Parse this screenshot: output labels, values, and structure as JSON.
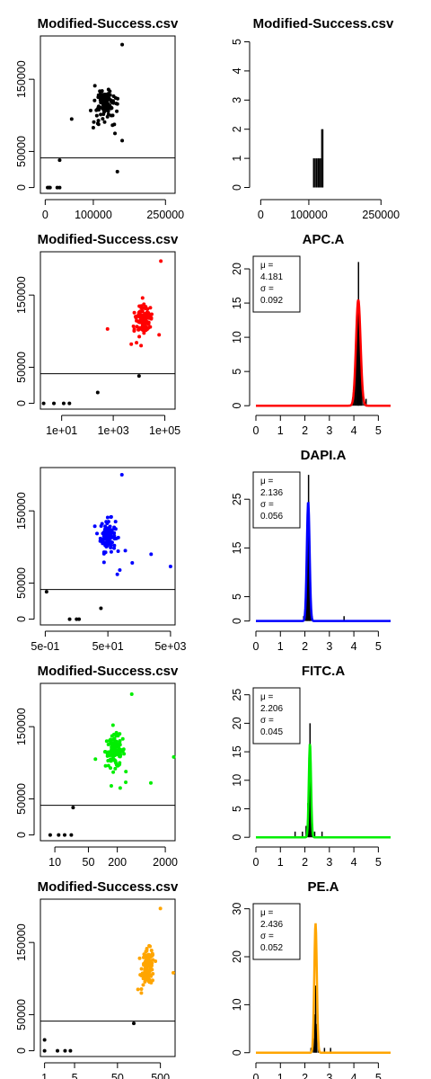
{
  "chart_data": [
    {
      "type": "scatter",
      "title": "Modified-Success.csv",
      "xscale": "linear",
      "xlim": [
        -10000,
        270000
      ],
      "ylim": [
        -8000,
        210000
      ],
      "xticks": [
        {
          "v": 0,
          "label": "0"
        },
        {
          "v": 100000,
          "label": "100000"
        },
        {
          "v": 250000,
          "label": "250000"
        }
      ],
      "yticks": [
        {
          "v": 0,
          "label": "0"
        },
        {
          "v": 50000,
          "label": "50000"
        },
        {
          "v": 150000,
          "label": "150000"
        }
      ],
      "hline": 41000,
      "color": "#000000",
      "cluster": {
        "cx": 125000,
        "cy": 116000,
        "sx": 12000,
        "sy": 11000,
        "n": 110
      },
      "outliers": [
        [
          5000,
          0
        ],
        [
          8000,
          0
        ],
        [
          10000,
          0
        ],
        [
          25000,
          0
        ],
        [
          30000,
          0
        ],
        [
          30000,
          38000
        ],
        [
          55000,
          95000
        ],
        [
          160000,
          198000
        ],
        [
          150000,
          22000
        ],
        [
          160000,
          65000
        ],
        [
          145000,
          75000
        ],
        [
          100000,
          83000
        ]
      ]
    },
    {
      "type": "bar",
      "title": "Modified-Success.csv",
      "xscale": "linear",
      "xlim": [
        -10000,
        270000
      ],
      "ylim": [
        -0.2,
        5.2
      ],
      "xticks": [
        {
          "v": 0,
          "label": "0"
        },
        {
          "v": 100000,
          "label": "100000"
        },
        {
          "v": 250000,
          "label": "250000"
        }
      ],
      "yticks": [
        {
          "v": 0,
          "label": "0"
        },
        {
          "v": 1,
          "label": "1"
        },
        {
          "v": 2,
          "label": "2"
        },
        {
          "v": 3,
          "label": "3"
        },
        {
          "v": 4,
          "label": "4"
        },
        {
          "v": 5,
          "label": "5"
        }
      ],
      "spikes": [
        [
          110000,
          1
        ],
        [
          113000,
          1
        ],
        [
          116000,
          1
        ],
        [
          119000,
          1
        ],
        [
          121000,
          1
        ],
        [
          124000,
          1
        ],
        [
          127000,
          2
        ],
        [
          129000,
          2
        ]
      ]
    },
    {
      "type": "scatter",
      "title": "Modified-Success.csv",
      "xscale": "log",
      "xlim": [
        1.5,
        250000
      ],
      "ylim": [
        -8000,
        210000
      ],
      "xticks": [
        {
          "v": 10,
          "label": "1e+01"
        },
        {
          "v": 1000,
          "label": "1e+03"
        },
        {
          "v": 100000,
          "label": "1e+05"
        }
      ],
      "yticks": [
        {
          "v": 0,
          "label": "0"
        },
        {
          "v": 50000,
          "label": "50000"
        },
        {
          "v": 150000,
          "label": "150000"
        }
      ],
      "hline": 41000,
      "color": "#ff0000",
      "cluster": {
        "cx": 15000,
        "cy": 116000,
        "sx": 0.18,
        "sy": 11000,
        "n": 110
      },
      "outliers": [
        [
          2,
          0
        ],
        [
          5,
          0
        ],
        [
          12,
          0
        ],
        [
          20,
          0
        ],
        [
          250,
          15000
        ],
        [
          10000,
          38000
        ],
        [
          5000,
          82000
        ],
        [
          12000,
          80000
        ],
        [
          8000,
          84000
        ],
        [
          600,
          103000
        ],
        [
          70000,
          197000
        ],
        [
          60000,
          95000
        ]
      ]
    },
    {
      "type": "histogram",
      "title": "APC.A",
      "xlim": [
        0,
        5.5
      ],
      "ylim": [
        -0.5,
        22.5
      ],
      "xticks": [
        {
          "v": 0,
          "label": "0"
        },
        {
          "v": 1,
          "label": "1"
        },
        {
          "v": 2,
          "label": "2"
        },
        {
          "v": 3,
          "label": "3"
        },
        {
          "v": 4,
          "label": "4"
        },
        {
          "v": 5,
          "label": "5"
        }
      ],
      "yticks": [
        {
          "v": 0,
          "label": "0"
        },
        {
          "v": 5,
          "label": "5"
        },
        {
          "v": 10,
          "label": "10"
        },
        {
          "v": 15,
          "label": "15"
        },
        {
          "v": 20,
          "label": "20"
        }
      ],
      "color": "#ff0000",
      "mu": 4.181,
      "sigma": 0.092,
      "curve_peak": 15.5,
      "legend": {
        "l1": "μ =",
        "l2": "4.181",
        "l3": "σ =",
        "l4": "0.092"
      },
      "spikes": [
        [
          3.95,
          1
        ],
        [
          4.0,
          2
        ],
        [
          4.05,
          5
        ],
        [
          4.1,
          9
        ],
        [
          4.15,
          14
        ],
        [
          4.19,
          21
        ],
        [
          4.23,
          12
        ],
        [
          4.28,
          7
        ],
        [
          4.33,
          3
        ],
        [
          4.4,
          1
        ],
        [
          4.5,
          1
        ]
      ]
    },
    {
      "type": "scatter",
      "title": "",
      "xscale": "log",
      "xlim": [
        0.35,
        7000
      ],
      "ylim": [
        -8000,
        210000
      ],
      "xticks": [
        {
          "v": 0.5,
          "label": "5e-01"
        },
        {
          "v": 50,
          "label": "5e+01"
        },
        {
          "v": 5000,
          "label": "5e+03"
        }
      ],
      "yticks": [
        {
          "v": 0,
          "label": "0"
        },
        {
          "v": 50000,
          "label": "50000"
        },
        {
          "v": 150000,
          "label": "150000"
        }
      ],
      "hline": 41000,
      "color": "#0000ff",
      "cluster": {
        "cx": 50,
        "cy": 116000,
        "sx": 0.12,
        "sy": 11000,
        "n": 110
      },
      "outliers": [
        [
          0.55,
          38000
        ],
        [
          3,
          0
        ],
        [
          5,
          0
        ],
        [
          6,
          0
        ],
        [
          30,
          15000
        ],
        [
          140,
          200000
        ],
        [
          180,
          95000
        ],
        [
          300,
          78000
        ],
        [
          5000,
          73000
        ],
        [
          120,
          68000
        ],
        [
          100,
          62000
        ],
        [
          1200,
          90000
        ]
      ]
    },
    {
      "type": "histogram",
      "title": "DAPI.A",
      "xlim": [
        0,
        5.5
      ],
      "ylim": [
        -0.8,
        31.5
      ],
      "xticks": [
        {
          "v": 0,
          "label": "0"
        },
        {
          "v": 1,
          "label": "1"
        },
        {
          "v": 2,
          "label": "2"
        },
        {
          "v": 3,
          "label": "3"
        },
        {
          "v": 4,
          "label": "4"
        },
        {
          "v": 5,
          "label": "5"
        }
      ],
      "yticks": [
        {
          "v": 0,
          "label": "0"
        },
        {
          "v": 5,
          "label": "5"
        },
        {
          "v": 15,
          "label": "15"
        },
        {
          "v": 25,
          "label": "25"
        }
      ],
      "color": "#0000ff",
      "mu": 2.136,
      "sigma": 0.056,
      "curve_peak": 24.5,
      "legend": {
        "l1": "μ =",
        "l2": "2.136",
        "l3": "σ =",
        "l4": "0.056"
      },
      "spikes": [
        [
          1.95,
          1
        ],
        [
          2.02,
          3
        ],
        [
          2.07,
          9
        ],
        [
          2.11,
          18
        ],
        [
          2.15,
          30
        ],
        [
          2.19,
          14
        ],
        [
          2.24,
          5
        ],
        [
          2.3,
          1
        ],
        [
          3.6,
          1
        ]
      ]
    },
    {
      "type": "scatter",
      "title": "Modified-Success.csv",
      "xscale": "log",
      "xlim": [
        5,
        3200
      ],
      "ylim": [
        -8000,
        210000
      ],
      "xticks": [
        {
          "v": 10,
          "label": "10"
        },
        {
          "v": 50,
          "label": "50"
        },
        {
          "v": 200,
          "label": "200"
        },
        {
          "v": 2000,
          "label": "2000"
        }
      ],
      "yticks": [
        {
          "v": 0,
          "label": "0"
        },
        {
          "v": 50000,
          "label": "50000"
        },
        {
          "v": 150000,
          "label": "150000"
        }
      ],
      "hline": 41000,
      "color": "#00ee00",
      "cluster": {
        "cx": 180,
        "cy": 116000,
        "sx": 0.1,
        "sy": 11000,
        "n": 110
      },
      "outliers": [
        [
          8,
          0
        ],
        [
          12,
          0
        ],
        [
          16,
          0
        ],
        [
          22,
          0
        ],
        [
          24,
          38000
        ],
        [
          70,
          105000
        ],
        [
          400,
          195000
        ],
        [
          3000,
          108000
        ],
        [
          1000,
          72000
        ],
        [
          230,
          65000
        ],
        [
          300,
          73000
        ],
        [
          150,
          68000
        ]
      ]
    },
    {
      "type": "histogram",
      "title": "FITC.A",
      "xlim": [
        0,
        5.5
      ],
      "ylim": [
        -0.6,
        27
      ],
      "xticks": [
        {
          "v": 0,
          "label": "0"
        },
        {
          "v": 1,
          "label": "1"
        },
        {
          "v": 2,
          "label": "2"
        },
        {
          "v": 3,
          "label": "3"
        },
        {
          "v": 4,
          "label": "4"
        },
        {
          "v": 5,
          "label": "5"
        }
      ],
      "yticks": [
        {
          "v": 0,
          "label": "0"
        },
        {
          "v": 5,
          "label": "5"
        },
        {
          "v": 10,
          "label": "10"
        },
        {
          "v": 15,
          "label": "15"
        },
        {
          "v": 20,
          "label": "20"
        },
        {
          "v": 25,
          "label": "25"
        }
      ],
      "color": "#00ee00",
      "mu": 2.206,
      "sigma": 0.045,
      "curve_peak": 16.5,
      "legend": {
        "l1": "μ =",
        "l2": "2.206",
        "l3": "σ =",
        "l4": "0.045"
      },
      "spikes": [
        [
          1.6,
          1
        ],
        [
          1.9,
          1
        ],
        [
          2.05,
          2
        ],
        [
          2.12,
          6
        ],
        [
          2.17,
          14
        ],
        [
          2.21,
          20
        ],
        [
          2.26,
          11
        ],
        [
          2.3,
          4
        ],
        [
          2.4,
          1
        ],
        [
          2.7,
          1
        ]
      ]
    },
    {
      "type": "scatter",
      "title": "Modified-Success.csv",
      "xscale": "log",
      "xlim": [
        0.8,
        1100
      ],
      "ylim": [
        -8000,
        210000
      ],
      "xticks": [
        {
          "v": 1,
          "label": "1"
        },
        {
          "v": 5,
          "label": "5"
        },
        {
          "v": 50,
          "label": "50"
        },
        {
          "v": 500,
          "label": "500"
        }
      ],
      "yticks": [
        {
          "v": 0,
          "label": "0"
        },
        {
          "v": 50000,
          "label": "50000"
        },
        {
          "v": 150000,
          "label": "150000"
        }
      ],
      "hline": 41000,
      "color": "#ffa500",
      "cluster": {
        "cx": 260,
        "cy": 116000,
        "sx": 0.07,
        "sy": 12000,
        "n": 110
      },
      "outliers": [
        [
          1,
          15000
        ],
        [
          1,
          0
        ],
        [
          2,
          0
        ],
        [
          3,
          0
        ],
        [
          4,
          0
        ],
        [
          120,
          38000
        ],
        [
          500,
          197000
        ],
        [
          1000,
          108000
        ],
        [
          150,
          85000
        ],
        [
          180,
          80000
        ],
        [
          200,
          100000
        ]
      ]
    },
    {
      "type": "histogram",
      "title": "PE.A",
      "xlim": [
        0,
        5.5
      ],
      "ylim": [
        -0.8,
        32
      ],
      "xticks": [
        {
          "v": 0,
          "label": "0"
        },
        {
          "v": 1,
          "label": "1"
        },
        {
          "v": 2,
          "label": "2"
        },
        {
          "v": 3,
          "label": "3"
        },
        {
          "v": 4,
          "label": "4"
        },
        {
          "v": 5,
          "label": "5"
        }
      ],
      "yticks": [
        {
          "v": 0,
          "label": "0"
        },
        {
          "v": 10,
          "label": "10"
        },
        {
          "v": 20,
          "label": "20"
        },
        {
          "v": 30,
          "label": "30"
        }
      ],
      "color": "#ffa500",
      "mu": 2.436,
      "sigma": 0.052,
      "curve_peak": 27,
      "legend": {
        "l1": "μ =",
        "l2": "2.436",
        "l3": "σ =",
        "l4": "0.052"
      },
      "spikes": [
        [
          2.25,
          1
        ],
        [
          2.35,
          3
        ],
        [
          2.4,
          8
        ],
        [
          2.44,
          14
        ],
        [
          2.48,
          6
        ],
        [
          2.55,
          2
        ],
        [
          2.8,
          1
        ],
        [
          3.05,
          1
        ]
      ]
    }
  ]
}
